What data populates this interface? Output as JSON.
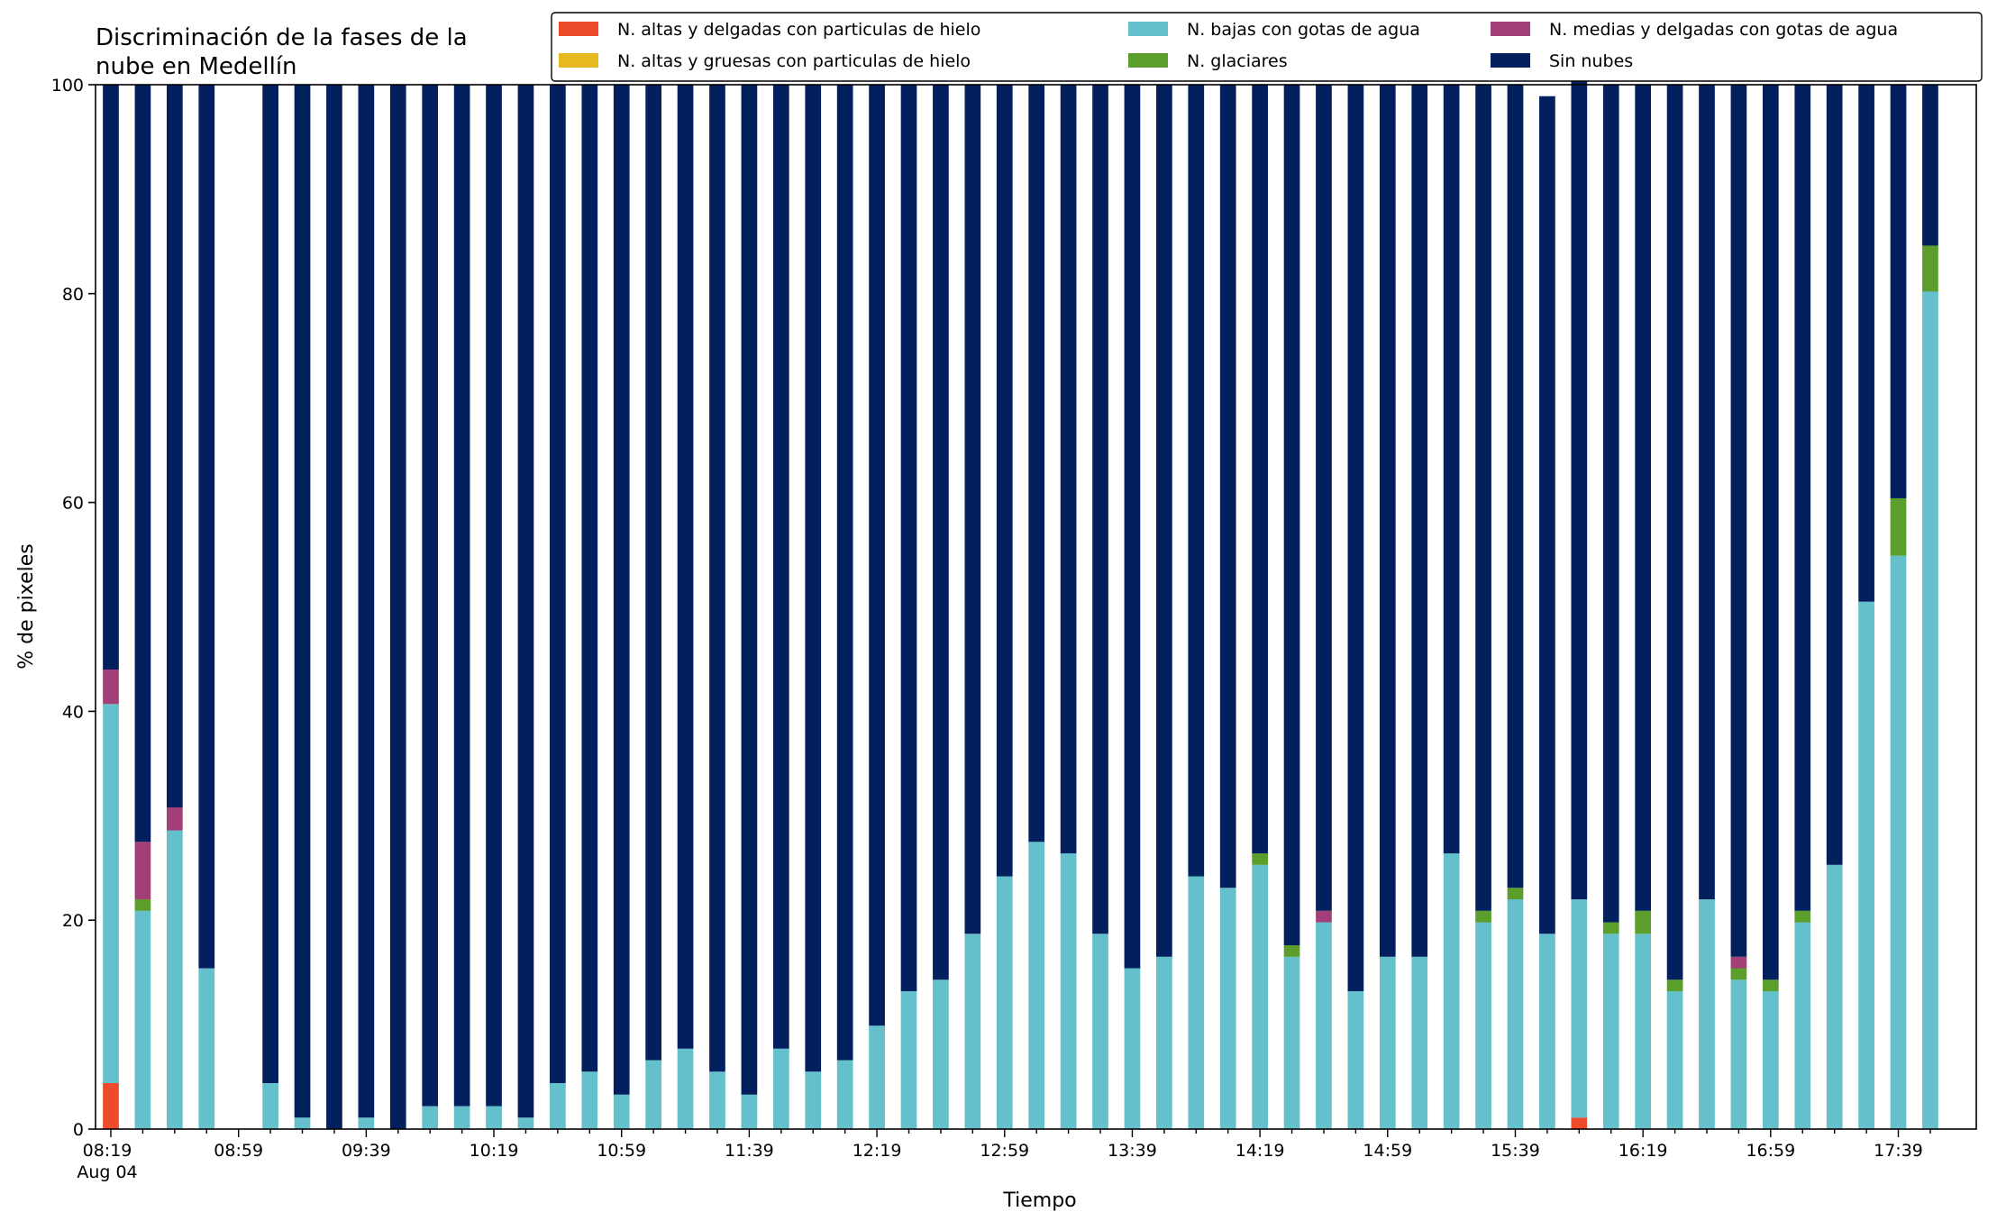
{
  "chart_data": {
    "type": "bar",
    "stacked": true,
    "title": "Discriminación de la fases de la\nnube en Medellín",
    "xlabel": "Tiempo",
    "ylabel": "% de pixeles",
    "ylim": [
      0,
      100
    ],
    "yticks": [
      0,
      20,
      40,
      60,
      80,
      100
    ],
    "grid": false,
    "legend_position": "top-right",
    "x_tick_labels": [
      "08:19\nAug 04",
      "08:59",
      "09:39",
      "10:19",
      "10:59",
      "11:39",
      "12:19",
      "12:59",
      "13:39",
      "14:19",
      "14:59",
      "15:39",
      "16:19",
      "16:59",
      "17:39"
    ],
    "categories": [
      "08:19",
      "08:29",
      "08:39",
      "08:49",
      "08:59",
      "09:09",
      "09:19",
      "09:29",
      "09:39",
      "09:49",
      "09:59",
      "10:09",
      "10:19",
      "10:29",
      "10:39",
      "10:49",
      "10:59",
      "11:09",
      "11:19",
      "11:29",
      "11:39",
      "11:49",
      "11:59",
      "12:09",
      "12:19",
      "12:29",
      "12:39",
      "12:49",
      "12:59",
      "13:09",
      "13:19",
      "13:29",
      "13:39",
      "13:49",
      "13:59",
      "14:09",
      "14:19",
      "14:29",
      "14:39",
      "14:49",
      "14:59",
      "15:09",
      "15:19",
      "15:29",
      "15:39",
      "15:49",
      "15:59",
      "16:09",
      "16:19",
      "16:29",
      "16:39",
      "16:49",
      "16:59",
      "17:09",
      "17:19",
      "17:29",
      "17:39",
      "17:49"
    ],
    "series": [
      {
        "name": "N. altas y delgadas con particulas de hielo",
        "color": "#ee4a2c",
        "values": [
          4.4,
          0,
          0,
          0,
          null,
          0,
          0,
          0,
          0,
          0,
          0,
          0,
          0,
          0,
          0,
          0,
          0,
          0,
          0,
          0,
          0,
          0,
          0,
          0,
          0,
          0,
          0,
          0,
          0,
          0,
          0,
          0,
          0,
          0,
          0,
          0,
          0,
          0,
          0,
          0,
          0,
          0,
          0,
          0,
          0,
          0,
          1.1,
          0,
          0,
          0,
          0,
          0,
          0,
          0,
          0,
          0,
          0,
          0
        ]
      },
      {
        "name": "N. altas y gruesas con particulas de hielo",
        "color": "#e6b91e",
        "values": [
          0,
          0,
          0,
          0,
          null,
          0,
          0,
          0,
          0,
          0,
          0,
          0,
          0,
          0,
          0,
          0,
          0,
          0,
          0,
          0,
          0,
          0,
          0,
          0,
          0,
          0,
          0,
          0,
          0,
          0,
          0,
          0,
          0,
          0,
          0,
          0,
          0,
          0,
          0,
          0,
          0,
          0,
          0,
          0,
          0,
          0,
          0,
          0,
          0,
          0,
          0,
          0,
          0,
          0,
          0,
          0,
          0,
          0
        ]
      },
      {
        "name": "N. bajas con gotas de agua",
        "color": "#64c0cb",
        "values": [
          36.3,
          20.9,
          28.6,
          15.4,
          null,
          4.4,
          1.1,
          0,
          1.1,
          0,
          2.2,
          2.2,
          2.2,
          1.1,
          4.4,
          5.5,
          3.3,
          6.6,
          7.7,
          5.5,
          3.3,
          7.7,
          5.5,
          6.6,
          9.9,
          13.2,
          14.3,
          18.7,
          24.2,
          27.5,
          26.4,
          18.7,
          15.4,
          16.5,
          24.2,
          23.1,
          25.3,
          16.5,
          19.8,
          13.2,
          16.5,
          16.5,
          26.4,
          19.8,
          22.0,
          18.7,
          20.9,
          18.7,
          18.7,
          13.2,
          22.0,
          14.3,
          13.2,
          19.8,
          25.3,
          50.5,
          54.9,
          80.2
        ]
      },
      {
        "name": "N. glaciares",
        "color": "#5b9e2c",
        "values": [
          0,
          1.1,
          0,
          0,
          null,
          0,
          0,
          0,
          0,
          0,
          0,
          0,
          0,
          0,
          0,
          0,
          0,
          0,
          0,
          0,
          0,
          0,
          0,
          0,
          0,
          0,
          0,
          0,
          0,
          0,
          0,
          0,
          0,
          0,
          0,
          0,
          1.1,
          1.1,
          0,
          0,
          0,
          0,
          0,
          1.1,
          1.1,
          0,
          0,
          1.1,
          2.2,
          1.1,
          0,
          1.1,
          1.1,
          1.1,
          0,
          0,
          5.5,
          4.4
        ]
      },
      {
        "name": "N. medias y delgadas con gotas de agua",
        "color": "#a23f76",
        "values": [
          3.3,
          5.5,
          2.2,
          0,
          null,
          0,
          0,
          0,
          0,
          0,
          0,
          0,
          0,
          0,
          0,
          0,
          0,
          0,
          0,
          0,
          0,
          0,
          0,
          0,
          0,
          0,
          0,
          0,
          0,
          0,
          0,
          0,
          0,
          0,
          0,
          0,
          0,
          0,
          1.1,
          0,
          0,
          0,
          0,
          0,
          0,
          0,
          0,
          0,
          0,
          0,
          0,
          1.1,
          0,
          0,
          0,
          0,
          0,
          0
        ]
      },
      {
        "name": "Sin nubes",
        "color": "#02205e",
        "values": [
          56.0,
          72.5,
          69.2,
          84.6,
          null,
          95.6,
          98.9,
          100,
          98.9,
          100,
          97.8,
          97.8,
          97.8,
          98.9,
          95.6,
          94.5,
          96.7,
          93.4,
          92.3,
          94.5,
          96.7,
          92.3,
          94.5,
          93.4,
          90.1,
          86.8,
          85.7,
          81.3,
          75.8,
          72.5,
          73.6,
          81.3,
          84.6,
          83.5,
          75.8,
          76.9,
          73.6,
          82.4,
          79.1,
          86.8,
          83.5,
          83.5,
          73.6,
          79.1,
          76.9,
          80.2,
          79.1,
          80.2,
          79.1,
          85.7,
          78.0,
          83.5,
          85.7,
          79.1,
          74.7,
          49.5,
          39.6,
          15.4
        ]
      }
    ]
  }
}
